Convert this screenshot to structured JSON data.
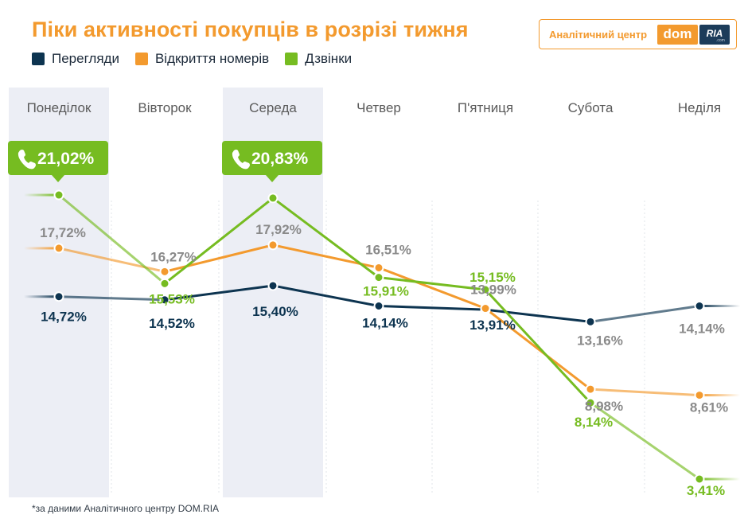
{
  "header": {
    "title": "Піки активності покупців в розрізі тижня",
    "brand_text": "Аналітичний центр",
    "brand_dom": "dom",
    "brand_ria": "RIA",
    "brand_com": ".com"
  },
  "footnote": "*за даними Аналітичного центру DOM.RIA",
  "colors": {
    "views": "#0d3450",
    "opens": "#f39a2e",
    "calls": "#76bc21",
    "highlight_column": "#eceef5",
    "label_muted": "#8a8a8a"
  },
  "chart_data": {
    "type": "line",
    "categories": [
      "Понеділок",
      "Вівторок",
      "Середа",
      "Четвер",
      "П'ятниця",
      "Субота",
      "Неділя"
    ],
    "series": [
      {
        "name": "Перегляди",
        "key": "views",
        "values": [
          14.72,
          14.52,
          15.4,
          14.14,
          13.91,
          13.16,
          14.14
        ],
        "labels": [
          "14,72%",
          "14,52%",
          "15,40%",
          "14,14%",
          "13,91%",
          "13,16%",
          "14,14%"
        ]
      },
      {
        "name": "Відкриття номерів",
        "key": "opens",
        "values": [
          17.72,
          16.27,
          17.92,
          16.51,
          13.99,
          8.98,
          8.61
        ],
        "labels": [
          "17,72%",
          "16,27%",
          "17,92%",
          "16,51%",
          "13,99%",
          "8,98%",
          "8,61%"
        ]
      },
      {
        "name": "Дзвінки",
        "key": "calls",
        "values": [
          21.02,
          15.53,
          20.83,
          15.91,
          15.15,
          8.14,
          3.41
        ],
        "labels": [
          "21,02%",
          "15,53%",
          "20,83%",
          "15,91%",
          "15,15%",
          "8,14%",
          "3,41%"
        ]
      }
    ],
    "highlighted_days": [
      "Понеділок",
      "Середа"
    ],
    "peak_badges": [
      {
        "day": "Понеділок",
        "label": "21,02%",
        "icon": "phone-icon"
      },
      {
        "day": "Середа",
        "label": "20,83%",
        "icon": "phone-icon"
      }
    ],
    "y_axis": "hidden",
    "grid": "vertical-dashed",
    "legend_position": "top-left"
  }
}
